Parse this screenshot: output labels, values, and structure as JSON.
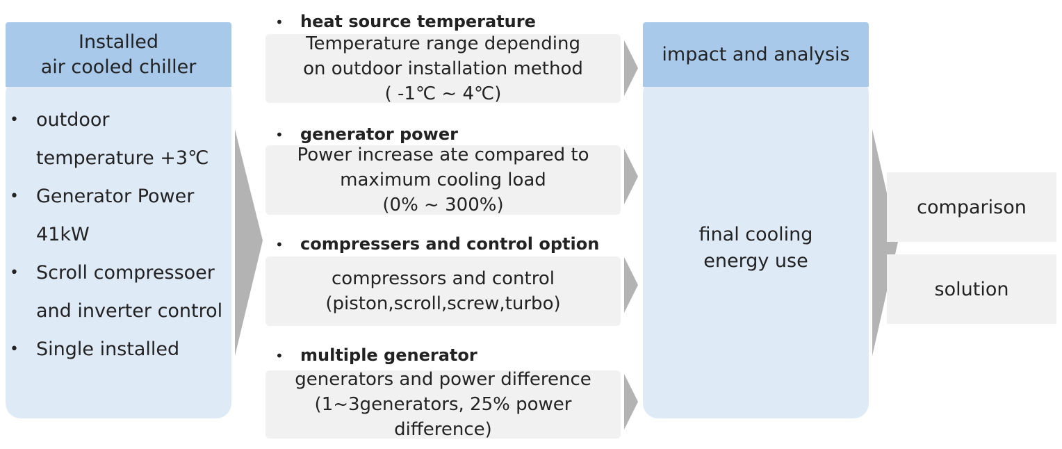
{
  "left_panel": {
    "header": "Installed\nair cooled chiller",
    "items": [
      "outdoor temperature +3℃",
      "Generator Power 41kW",
      "Scroll compressoer and inverter control",
      "Single installed"
    ]
  },
  "sections": [
    {
      "title": "heat source temperature",
      "text": "Temperature range depending\non outdoor installation method\n( -1℃ ~ 4℃)"
    },
    {
      "title": "generator power",
      "text": "Power increase ate compared to\nmaximum cooling load\n(0% ~ 300%)"
    },
    {
      "title": "compressers and control option",
      "text": "compressors and control\n(piston,scroll,screw,turbo)"
    },
    {
      "title": "multiple generator",
      "text": "generators and power difference\n(1~3generators, 25% power\ndifference)"
    }
  ],
  "right_panel": {
    "header": "impact and analysis",
    "body": "final cooling\nenergy use"
  },
  "outputs": [
    "comparison",
    "solution"
  ],
  "colors": {
    "header_blue": "#a9c9eb",
    "panel_light_blue": "#dfeaf7",
    "box_gray": "#f1f1f1",
    "arrow_gray": "#b3b3b3"
  }
}
